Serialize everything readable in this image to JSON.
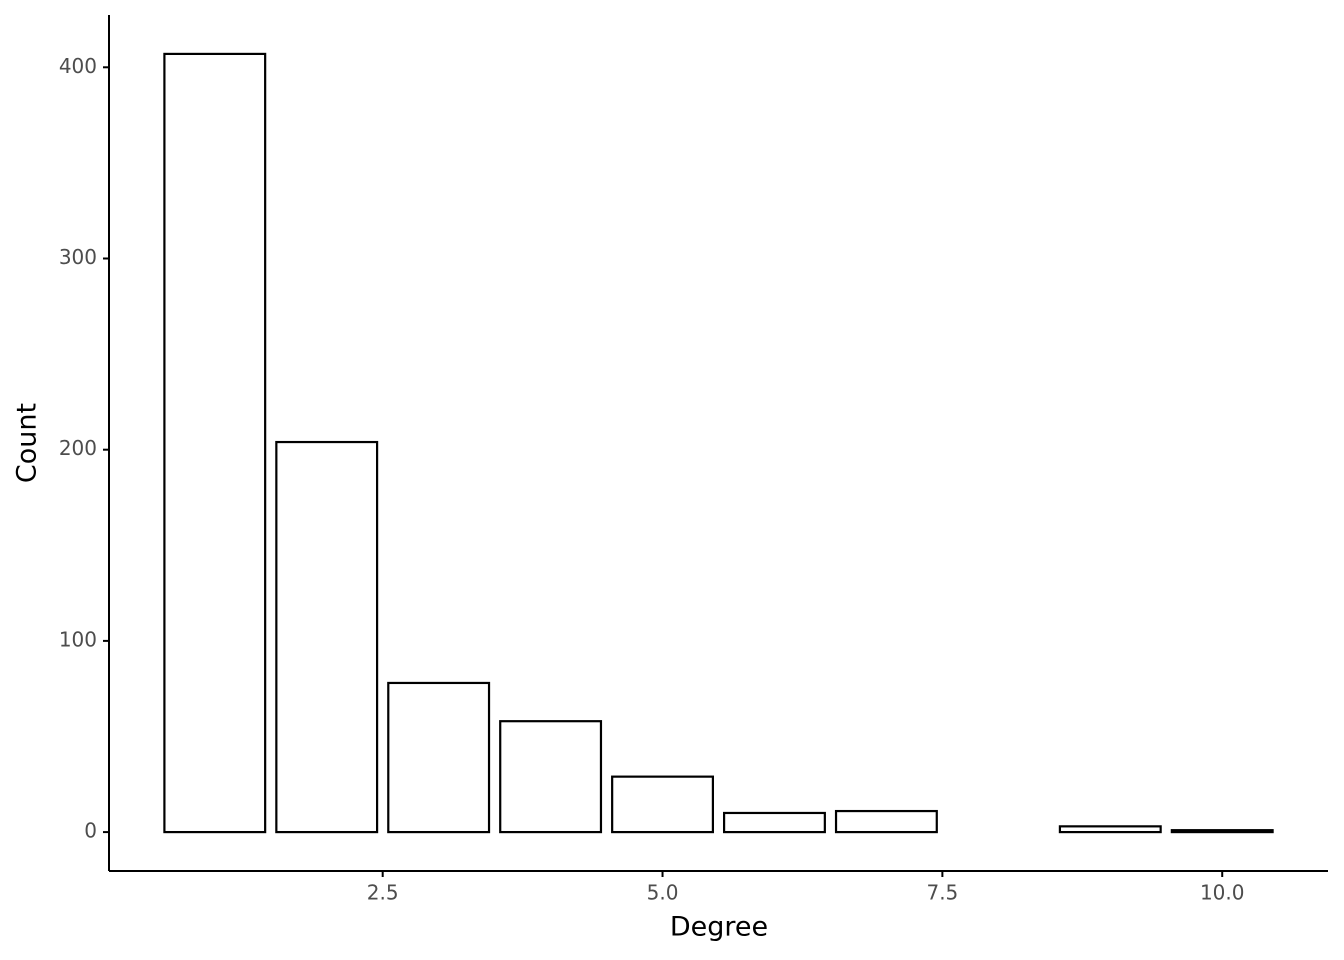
{
  "chart_data": {
    "type": "bar",
    "x_label": "Degree",
    "y_label": "Count",
    "x": [
      1,
      2,
      3,
      4,
      5,
      6,
      7,
      9,
      10
    ],
    "values": [
      407,
      204,
      78,
      58,
      29,
      10,
      11,
      3,
      1
    ],
    "color": "#ffffff",
    "edge_color": "#000000",
    "xlim": [
      0.055,
      10.945
    ],
    "ylim": [
      -20.35,
      427.35
    ],
    "xticks": [
      2.5,
      {
        "value": 5,
        "label": "5.0"
      },
      7.5,
      {
        "value": 10,
        "label": "10.0"
      }
    ],
    "yticks": [
      0,
      100,
      200,
      300,
      400
    ],
    "grid": false
  }
}
